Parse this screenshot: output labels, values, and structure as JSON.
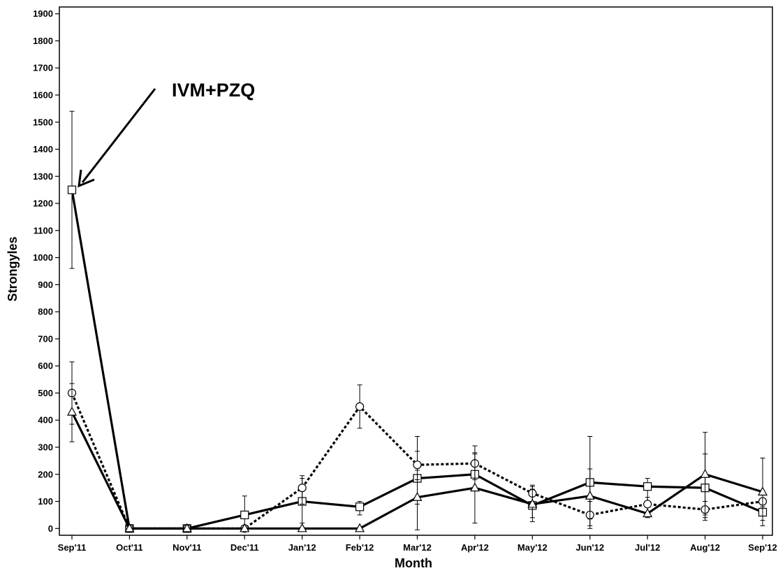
{
  "chart_data": {
    "type": "line",
    "title": "",
    "xlabel": "Month",
    "ylabel": "Strongyles",
    "categories": [
      "Sep'11",
      "Oct'11",
      "Nov'11",
      "Dec'11",
      "Jan'12",
      "Feb'12",
      "Mar'12",
      "Apr'12",
      "May'12",
      "Jun'12",
      "Jul'12",
      "Aug'12",
      "Sep'12"
    ],
    "yticks": [
      0,
      100,
      200,
      300,
      400,
      500,
      600,
      700,
      800,
      900,
      1000,
      1100,
      1200,
      1300,
      1400,
      1500,
      1600,
      1700,
      1800,
      1900
    ],
    "ylim": [
      -25,
      1925
    ],
    "grid": false,
    "legend": "none",
    "series": [
      {
        "marker": "square",
        "line_style": "solid",
        "values": [
          1250,
          0,
          0,
          50,
          100,
          80,
          185,
          200,
          85,
          170,
          155,
          150,
          60
        ],
        "error_low": [
          960,
          0,
          0,
          0,
          20,
          50,
          90,
          180,
          40,
          35,
          40,
          30,
          30
        ],
        "error_high": [
          1540,
          0,
          0,
          120,
          185,
          100,
          285,
          275,
          155,
          340,
          185,
          275,
          130
        ]
      },
      {
        "marker": "circle",
        "line_style": "dotted",
        "values": [
          500,
          0,
          0,
          0,
          150,
          450,
          235,
          240,
          130,
          50,
          90,
          70,
          100
        ],
        "error_low": [
          385,
          0,
          0,
          0,
          90,
          370,
          180,
          180,
          100,
          0,
          60,
          40,
          80
        ],
        "error_high": [
          615,
          0,
          0,
          0,
          195,
          530,
          340,
          305,
          145,
          100,
          115,
          100,
          110
        ]
      },
      {
        "marker": "triangle",
        "line_style": "solid",
        "values": [
          430,
          0,
          0,
          0,
          0,
          0,
          115,
          150,
          90,
          120,
          55,
          200,
          135
        ],
        "error_low": [
          320,
          0,
          0,
          0,
          0,
          0,
          -5,
          20,
          25,
          10,
          50,
          50,
          10
        ],
        "error_high": [
          535,
          0,
          0,
          0,
          0,
          0,
          215,
          280,
          160,
          220,
          60,
          355,
          260
        ]
      }
    ],
    "annotations": [
      {
        "text": "IVM+PZQ",
        "points_to_category": "Sep'11",
        "points_to_value": 1250
      }
    ]
  }
}
